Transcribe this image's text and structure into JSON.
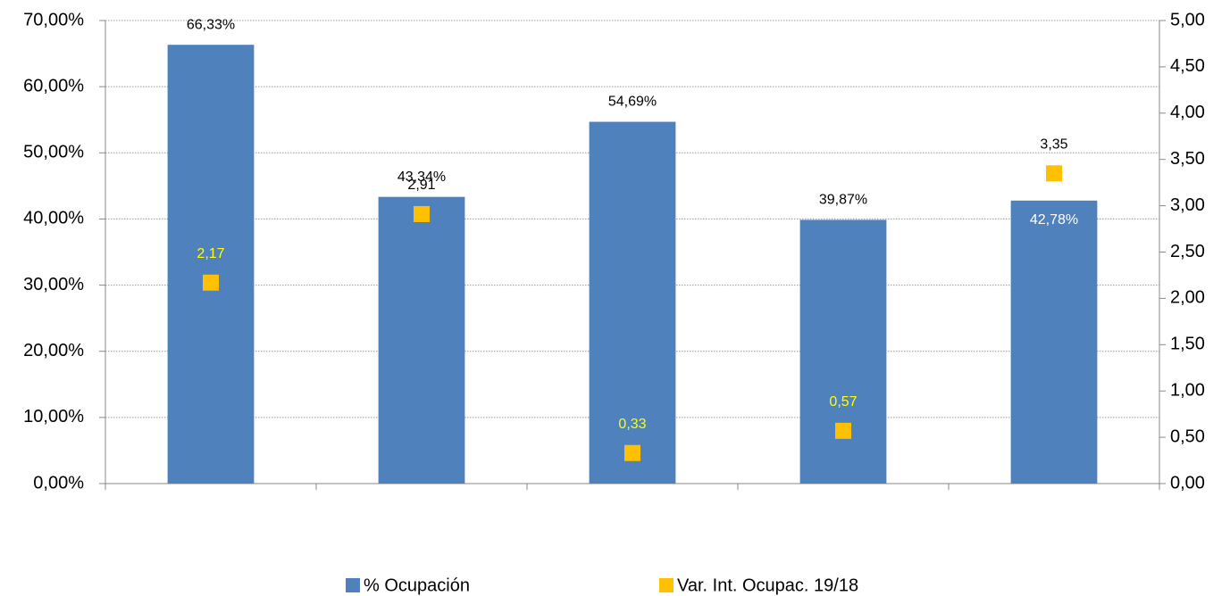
{
  "chart_data": {
    "type": "bar",
    "categories": [
      null,
      null,
      null,
      null,
      null
    ],
    "series": [
      {
        "name": "% Ocupación",
        "type": "bar",
        "color": "#4f81bd",
        "values": [
          66.33,
          43.34,
          54.69,
          39.87,
          42.78
        ],
        "value_labels": [
          "66,33%",
          "43,34%",
          "54,69%",
          "39,87%",
          "42,78%"
        ]
      },
      {
        "name": "Var. Int. Ocupac. 19/18",
        "type": "scatter",
        "axis": "y2",
        "color": "#ffc000",
        "values": [
          2.17,
          2.91,
          0.33,
          0.57,
          3.35
        ],
        "value_labels": [
          "2,17",
          "2,91",
          "0,33",
          "0,57",
          "3,35"
        ]
      }
    ],
    "ylim": [
      0,
      70
    ],
    "yticks": [
      {
        "value": 0,
        "label": "0,00%"
      },
      {
        "value": 10,
        "label": "10,00%"
      },
      {
        "value": 20,
        "label": "20,00%"
      },
      {
        "value": 30,
        "label": "30,00%"
      },
      {
        "value": 40,
        "label": "40,00%"
      },
      {
        "value": 50,
        "label": "50,00%"
      },
      {
        "value": 60,
        "label": "60,00%"
      },
      {
        "value": 70,
        "label": "70,00%"
      }
    ],
    "y2lim": [
      0,
      5
    ],
    "y2ticks": [
      {
        "value": 0,
        "label": "0,00"
      },
      {
        "value": 0.5,
        "label": "0,50"
      },
      {
        "value": 1,
        "label": "1,00"
      },
      {
        "value": 1.5,
        "label": "1,50"
      },
      {
        "value": 2,
        "label": "2,00"
      },
      {
        "value": 2.5,
        "label": "2,50"
      },
      {
        "value": 3,
        "label": "3,00"
      },
      {
        "value": 3.5,
        "label": "3,50"
      },
      {
        "value": 4,
        "label": "4,00"
      },
      {
        "value": 4.5,
        "label": "4,50"
      },
      {
        "value": 5,
        "label": "5,00"
      }
    ],
    "grid": true,
    "legend": "bottom"
  }
}
